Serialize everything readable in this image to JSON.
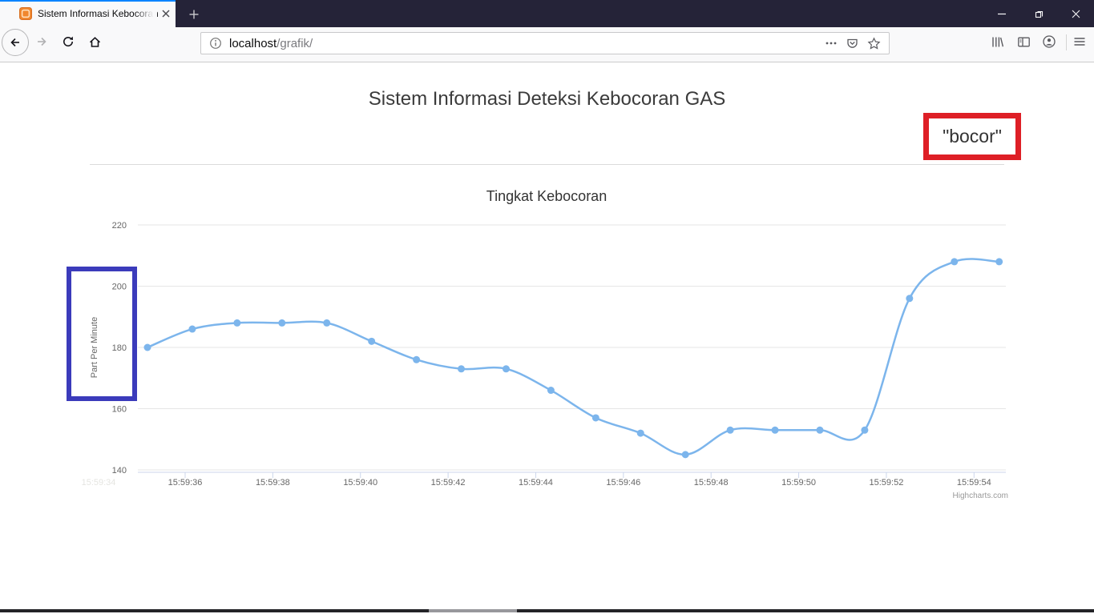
{
  "browser": {
    "tab_title": "Sistem Informasi Kebocoran Ga",
    "url_host": "localhost",
    "url_path": "/grafik/",
    "accent_color": "#0a84ff"
  },
  "page": {
    "title": "Sistem Informasi Deteksi Kebocoran GAS",
    "status_text": "\"bocor\"",
    "status_border_color": "#de1f26",
    "ylabel_highlight_color": "#3b3bbb"
  },
  "chart_data": {
    "type": "line",
    "title": "Tingkat Kebocoran",
    "ylabel": "Part Per Minute",
    "xlabel": "",
    "ylim": [
      140,
      220
    ],
    "yticks": [
      140,
      160,
      180,
      200,
      220
    ],
    "x": [
      "15:59:35",
      "15:59:36",
      "15:59:37",
      "15:59:38",
      "15:59:39",
      "15:59:40",
      "15:59:41",
      "15:59:42",
      "15:59:43",
      "15:59:44",
      "15:59:45",
      "15:59:46",
      "15:59:47",
      "15:59:48",
      "15:59:49",
      "15:59:50",
      "15:59:51",
      "15:59:52",
      "15:59:53",
      "15:59:54"
    ],
    "values": [
      180,
      186,
      188,
      188,
      188,
      182,
      176,
      173,
      173,
      166,
      157,
      152,
      145,
      153,
      153,
      153,
      153,
      196,
      208,
      208
    ],
    "xtick_labels": [
      "15:59:36",
      "15:59:38",
      "15:59:40",
      "15:59:42",
      "15:59:44",
      "15:59:46",
      "15:59:48",
      "15:59:50",
      "15:59:52",
      "15:59:54"
    ],
    "ghost_xtick_label": "15:59:34",
    "series_color": "#7cb5ec",
    "grid": true,
    "legend": "none",
    "credits": "Highcharts.com"
  }
}
